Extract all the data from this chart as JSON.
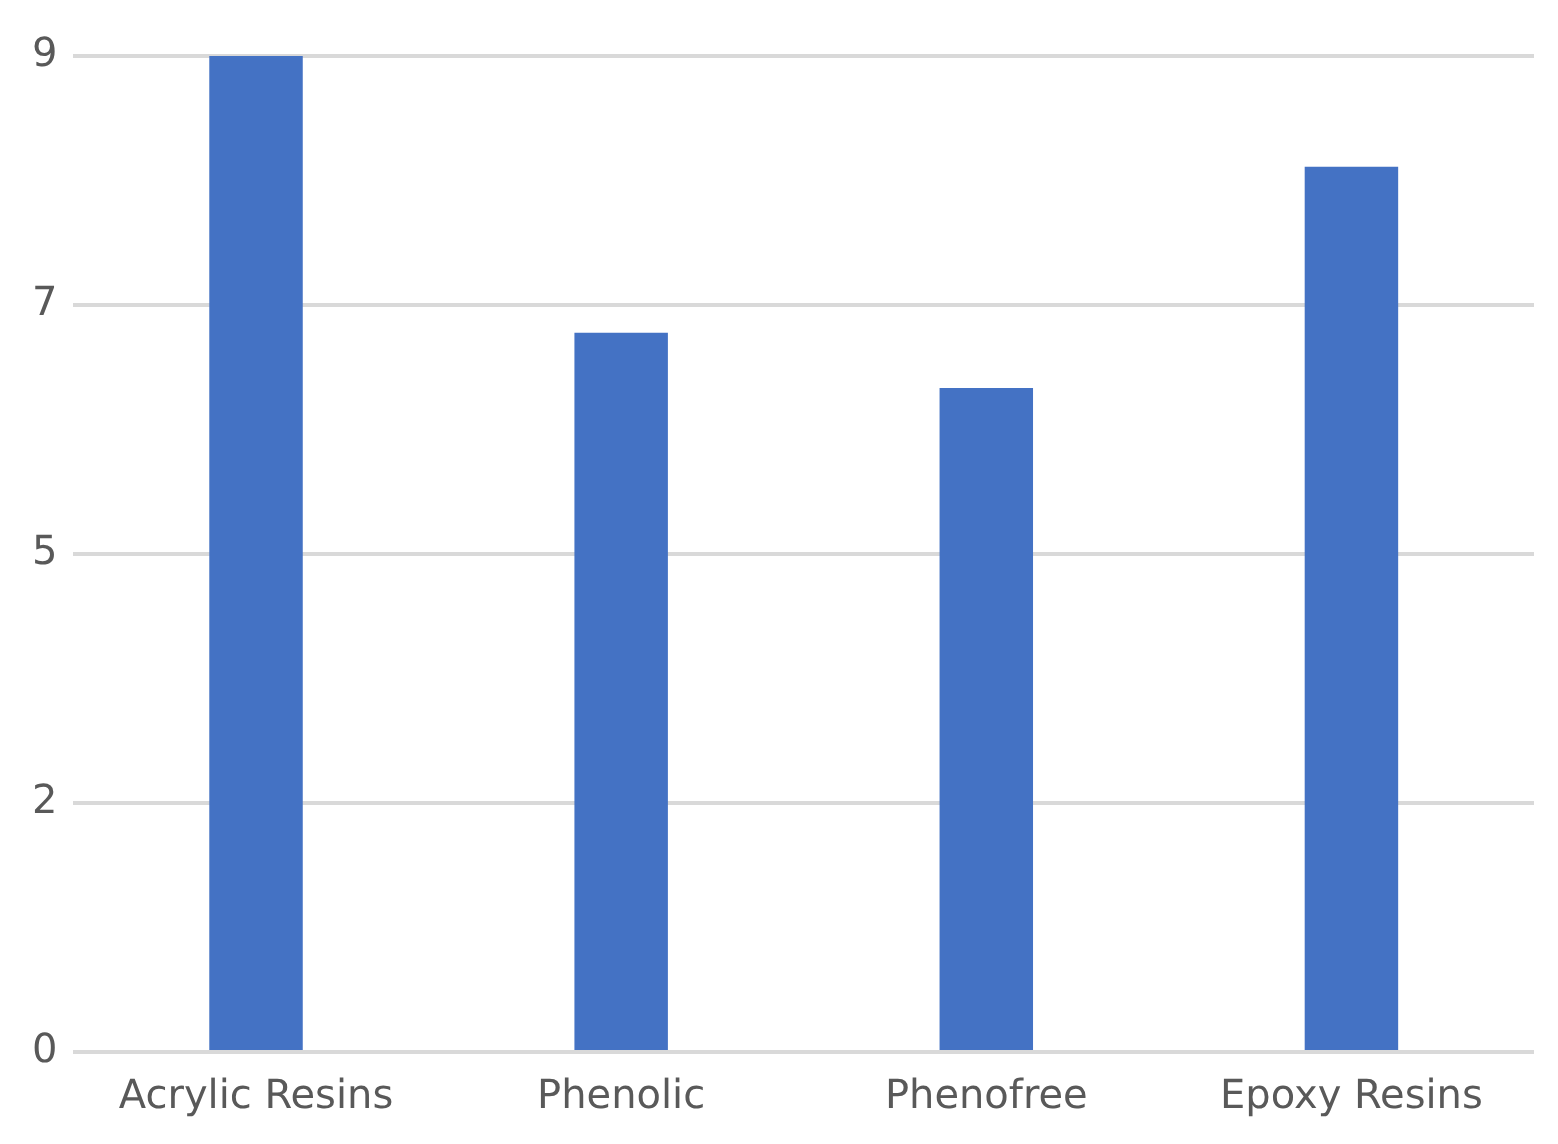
{
  "chart_data": {
    "type": "bar",
    "categories": [
      "Acrylic Resins",
      "Phenolic",
      "Phenofree",
      "Epoxy Resins"
    ],
    "values": [
      9,
      6.5,
      6,
      8
    ],
    "color": "#4472c4",
    "ylim": [
      0,
      9
    ],
    "yticks": [
      0,
      {
        "value": 2.25,
        "label": "2"
      },
      {
        "value": 4.5,
        "label": "5"
      },
      {
        "value": 6.75,
        "label": "7"
      },
      9
    ],
    "grid": "y",
    "legend": false
  }
}
